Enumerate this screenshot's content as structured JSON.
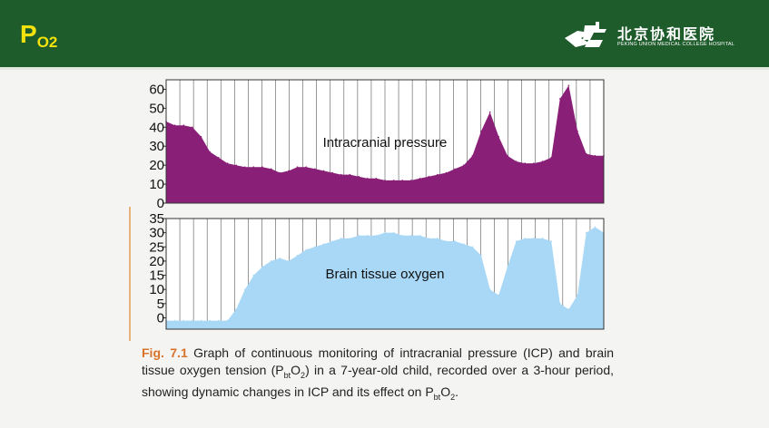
{
  "slide": {
    "title_main": "P",
    "title_sub": "O2"
  },
  "logo": {
    "name_cn": "北京协和医院",
    "name_en": "PEKING UNION MEDICAL COLLEGE HOSPITAL"
  },
  "caption": {
    "fig_label": "Fig. 7.1",
    "part1": " Graph of continuous monitoring of intracranial pressure (ICP) and brain tissue oxygen tension (P",
    "sub1": "bt",
    "part2": "O",
    "sub2": "2",
    "part3": ") in a 7-year-old child, recorded over a 3-hour period, showing dynamic changes in ICP and its effect on P",
    "sub3": "bt",
    "part4": "O",
    "sub4": "2",
    "part5": "."
  },
  "colors": {
    "header_bg": "#1e5c2c",
    "title": "#f3e20c",
    "icp_fill": "#8a1f78",
    "oxygen_fill": "#a9d8f6",
    "fig_label": "#d9732a"
  },
  "chart_data": [
    {
      "type": "area",
      "label": "Intracranial pressure",
      "ylim": [
        0,
        65
      ],
      "yticks": [
        "0",
        "10",
        "20",
        "30",
        "40",
        "50",
        "60"
      ],
      "grid": true,
      "x": [
        0,
        2,
        4,
        6,
        8,
        10,
        12,
        14,
        16,
        18,
        20,
        22,
        24,
        26,
        28,
        30,
        32,
        34,
        36,
        38,
        40,
        42,
        44,
        46,
        48,
        50,
        52,
        54,
        56,
        58,
        60,
        62,
        64,
        66,
        68,
        70,
        72,
        74,
        76,
        78,
        80,
        82,
        84,
        86,
        88,
        90,
        92,
        94,
        96,
        98,
        100
      ],
      "values": [
        43,
        41,
        41,
        40,
        35,
        27,
        24,
        21,
        20,
        19,
        19,
        19,
        18,
        16,
        17,
        19,
        19,
        18,
        17,
        16,
        15,
        15,
        14,
        13,
        13,
        12,
        12,
        12,
        12,
        13,
        14,
        15,
        16,
        18,
        20,
        25,
        38,
        48,
        35,
        25,
        22,
        21,
        21,
        22,
        24,
        55,
        62,
        38,
        26,
        25,
        25
      ]
    },
    {
      "type": "area",
      "label": "Brain tissue oxygen",
      "ylim": [
        -4,
        35
      ],
      "yticks": [
        "0",
        "5",
        "10",
        "15",
        "20",
        "25",
        "30",
        "35"
      ],
      "grid": true,
      "x": [
        0,
        2,
        4,
        6,
        8,
        10,
        12,
        14,
        16,
        18,
        20,
        22,
        24,
        26,
        28,
        30,
        32,
        34,
        36,
        38,
        40,
        42,
        44,
        46,
        48,
        50,
        52,
        54,
        56,
        58,
        60,
        62,
        64,
        66,
        68,
        70,
        72,
        74,
        76,
        78,
        80,
        82,
        84,
        86,
        88,
        90,
        92,
        94,
        96,
        98,
        100
      ],
      "values": [
        -1,
        -1,
        -1,
        -1,
        -1,
        -1,
        -1,
        -1,
        3,
        10,
        15,
        18,
        20,
        21,
        20,
        22,
        24,
        25,
        26,
        27,
        28,
        28,
        29,
        29,
        29,
        30,
        30,
        29,
        29,
        29,
        28,
        28,
        27,
        27,
        26,
        25,
        22,
        10,
        8,
        18,
        27,
        28,
        28,
        28,
        27,
        5,
        3,
        8,
        30,
        32,
        30
      ]
    }
  ]
}
